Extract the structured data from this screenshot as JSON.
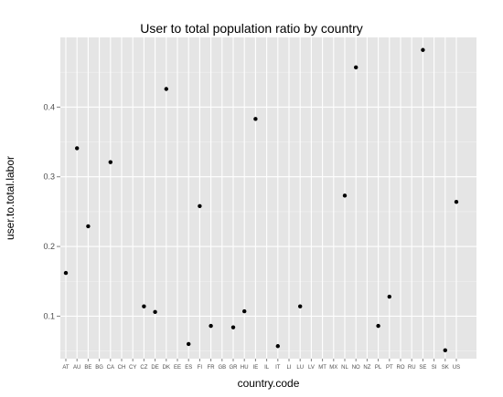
{
  "chart_data": {
    "type": "scatter",
    "title": "User to total population ratio by country",
    "xlabel": "country.code",
    "ylabel": "user.to.total.labor",
    "categories": [
      "AT",
      "AU",
      "BE",
      "BG",
      "CA",
      "CH",
      "CY",
      "CZ",
      "DE",
      "DK",
      "EE",
      "ES",
      "FI",
      "FR",
      "GB",
      "GR",
      "HU",
      "IE",
      "IL",
      "IT",
      "LI",
      "LU",
      "LV",
      "MT",
      "MX",
      "NL",
      "NO",
      "NZ",
      "PL",
      "PT",
      "RO",
      "RU",
      "SE",
      "SI",
      "SK",
      "US"
    ],
    "points": [
      {
        "x": "AT",
        "y": 0.162
      },
      {
        "x": "AU",
        "y": 0.341
      },
      {
        "x": "BE",
        "y": 0.229
      },
      {
        "x": "CA",
        "y": 0.321
      },
      {
        "x": "CZ",
        "y": 0.114
      },
      {
        "x": "DE",
        "y": 0.106
      },
      {
        "x": "DK",
        "y": 0.426
      },
      {
        "x": "ES",
        "y": 0.06
      },
      {
        "x": "FI",
        "y": 0.258
      },
      {
        "x": "FR",
        "y": 0.086
      },
      {
        "x": "GR",
        "y": 0.084
      },
      {
        "x": "HU",
        "y": 0.107
      },
      {
        "x": "IE",
        "y": 0.383
      },
      {
        "x": "IT",
        "y": 0.057
      },
      {
        "x": "LU",
        "y": 0.114
      },
      {
        "x": "NL",
        "y": 0.273
      },
      {
        "x": "NO",
        "y": 0.457
      },
      {
        "x": "PL",
        "y": 0.086
      },
      {
        "x": "PT",
        "y": 0.128
      },
      {
        "x": "SE",
        "y": 0.482
      },
      {
        "x": "SK",
        "y": 0.051
      },
      {
        "x": "US",
        "y": 0.264
      }
    ],
    "yticks": [
      0.1,
      0.2,
      0.3,
      0.4
    ],
    "ytick_labels": [
      "0.1",
      "0.2",
      "0.3",
      "0.4"
    ],
    "ylim": [
      0.039,
      0.5
    ],
    "grid": true,
    "panel_color": "#E5E5E5",
    "grid_color": "#FFFFFF",
    "point_color": "#000000"
  }
}
